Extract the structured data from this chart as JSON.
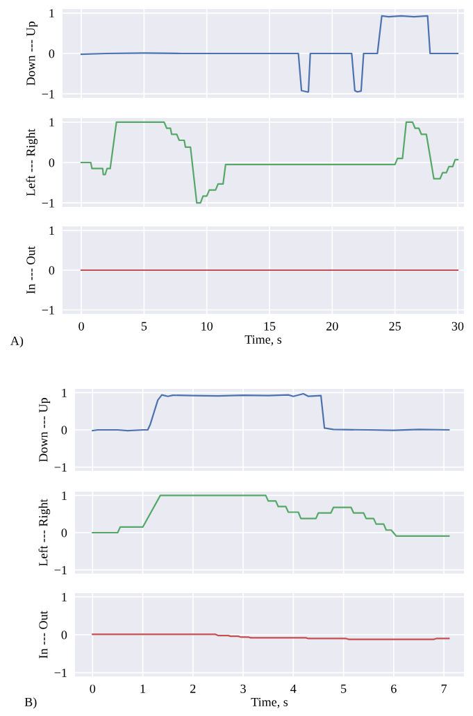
{
  "chart_data": [
    {
      "type": "line",
      "ylabel": "Down --- Up",
      "xlim": [
        -1.5,
        30.5
      ],
      "xticks": [
        0,
        5,
        10,
        15,
        20,
        25,
        30
      ],
      "ylim": [
        -1.1,
        1.1
      ],
      "yticks": [
        -1,
        0,
        1
      ],
      "grid": true,
      "tick_labels": "y",
      "series": [
        {
          "color": "#4c72b0",
          "x": [
            0,
            2,
            5,
            8,
            11,
            14,
            17.3,
            17.55,
            18.0,
            18.1,
            18.25,
            21.55,
            21.8,
            22.0,
            22.3,
            22.5,
            23.6,
            23.95,
            24.5,
            25.5,
            26.5,
            27.6,
            27.8,
            30
          ],
          "values": [
            -0.02,
            0.0,
            0.01,
            0.0,
            0.0,
            0.0,
            0.0,
            -0.92,
            -0.95,
            -0.95,
            0.0,
            0.0,
            -0.92,
            -0.95,
            -0.93,
            0.0,
            0.0,
            0.93,
            0.91,
            0.93,
            0.91,
            0.93,
            0.0,
            0.0
          ]
        }
      ]
    },
    {
      "type": "line",
      "ylabel": "Left --- Right",
      "xlim": [
        -1.5,
        30.5
      ],
      "xticks": [
        0,
        5,
        10,
        15,
        20,
        25,
        30
      ],
      "ylim": [
        -1.1,
        1.1
      ],
      "yticks": [
        -1,
        0,
        1
      ],
      "grid": true,
      "tick_labels": "y",
      "series": [
        {
          "color": "#55a868",
          "x": [
            0,
            0.75,
            0.85,
            1.7,
            1.75,
            1.9,
            2.05,
            2.3,
            2.8,
            6.6,
            6.8,
            7.1,
            7.2,
            7.6,
            7.8,
            8.2,
            8.3,
            8.7,
            9.2,
            9.5,
            9.7,
            10.0,
            10.2,
            10.7,
            10.9,
            11.3,
            11.5,
            25.0,
            25.2,
            25.6,
            25.9,
            26.4,
            26.6,
            26.9,
            27.1,
            27.5,
            28.1,
            28.6,
            28.8,
            29.1,
            29.3,
            29.6,
            29.8,
            30
          ],
          "values": [
            0,
            0,
            -0.15,
            -0.15,
            -0.3,
            -0.3,
            -0.15,
            -0.15,
            1.0,
            1.0,
            0.85,
            0.85,
            0.7,
            0.7,
            0.55,
            0.55,
            0.38,
            0.38,
            -1.0,
            -1.0,
            -0.83,
            -0.83,
            -0.68,
            -0.68,
            -0.53,
            -0.53,
            -0.05,
            -0.05,
            0.1,
            0.1,
            1.0,
            1.0,
            0.85,
            0.85,
            0.7,
            0.7,
            -0.4,
            -0.4,
            -0.25,
            -0.25,
            -0.1,
            -0.1,
            0.07,
            0.07
          ]
        }
      ]
    },
    {
      "type": "line",
      "ylabel": "In --- Out",
      "xlabel": "Time, s",
      "annotations": [
        "A)"
      ],
      "xlim": [
        -1.5,
        30.5
      ],
      "xticks": [
        0,
        5,
        10,
        15,
        20,
        25,
        30
      ],
      "ylim": [
        -1.1,
        1.1
      ],
      "yticks": [
        -1,
        0,
        1
      ],
      "grid": true,
      "series": [
        {
          "color": "#c44e52",
          "x": [
            0,
            30
          ],
          "values": [
            0,
            0
          ]
        }
      ]
    },
    {
      "type": "line",
      "ylabel": "Down --- Up",
      "xlim": [
        -0.35,
        7.4
      ],
      "xticks": [
        0,
        1,
        2,
        3,
        4,
        5,
        6,
        7
      ],
      "ylim": [
        -1.1,
        1.1
      ],
      "yticks": [
        -1,
        0,
        1
      ],
      "grid": true,
      "tick_labels": "y",
      "series": [
        {
          "color": "#4c72b0",
          "x": [
            0,
            0.1,
            0.5,
            0.7,
            1.0,
            1.1,
            1.15,
            1.3,
            1.38,
            1.5,
            1.6,
            2.0,
            2.5,
            3.0,
            3.5,
            3.9,
            4.0,
            4.2,
            4.3,
            4.55,
            4.62,
            4.8,
            5.5,
            6.0,
            6.5,
            7.1
          ],
          "values": [
            -0.02,
            0.0,
            0.0,
            -0.02,
            0.0,
            0.0,
            0.15,
            0.8,
            0.94,
            0.9,
            0.93,
            0.92,
            0.91,
            0.93,
            0.92,
            0.94,
            0.9,
            0.97,
            0.9,
            0.92,
            0.05,
            0.01,
            0.0,
            -0.01,
            0.01,
            0.0
          ]
        }
      ]
    },
    {
      "type": "line",
      "ylabel": "Left --- Right",
      "xlim": [
        -0.35,
        7.4
      ],
      "xticks": [
        0,
        1,
        2,
        3,
        4,
        5,
        6,
        7
      ],
      "ylim": [
        -1.1,
        1.1
      ],
      "yticks": [
        -1,
        0,
        1
      ],
      "grid": true,
      "tick_labels": "y",
      "series": [
        {
          "color": "#55a868",
          "x": [
            0,
            0.5,
            0.55,
            1.0,
            1.35,
            3.45,
            3.5,
            3.65,
            3.7,
            3.85,
            3.9,
            4.1,
            4.15,
            4.45,
            4.5,
            4.75,
            4.8,
            5.15,
            5.2,
            5.4,
            5.45,
            5.6,
            5.65,
            5.8,
            5.85,
            5.95,
            6.05,
            7.1
          ],
          "values": [
            0,
            0,
            0.15,
            0.15,
            1.0,
            1.0,
            0.85,
            0.85,
            0.7,
            0.7,
            0.55,
            0.55,
            0.38,
            0.38,
            0.53,
            0.53,
            0.68,
            0.68,
            0.53,
            0.53,
            0.38,
            0.38,
            0.23,
            0.23,
            0.07,
            0.07,
            -0.09,
            -0.09
          ]
        }
      ]
    },
    {
      "type": "line",
      "ylabel": "In --- Out",
      "xlabel": "Time, s",
      "annotations": [
        "B)"
      ],
      "xlim": [
        -0.35,
        7.4
      ],
      "xticks": [
        0,
        1,
        2,
        3,
        4,
        5,
        6,
        7
      ],
      "ylim": [
        -1.1,
        1.1
      ],
      "yticks": [
        -1,
        0,
        1
      ],
      "grid": true,
      "series": [
        {
          "color": "#c44e52",
          "x": [
            0,
            2.45,
            2.5,
            2.7,
            2.75,
            2.9,
            2.95,
            3.1,
            3.15,
            4.25,
            4.3,
            5.05,
            5.1,
            6.8,
            6.85,
            7.1
          ],
          "values": [
            0.01,
            0.01,
            -0.02,
            -0.02,
            -0.04,
            -0.04,
            -0.06,
            -0.06,
            -0.08,
            -0.08,
            -0.1,
            -0.1,
            -0.12,
            -0.12,
            -0.1,
            -0.1
          ]
        }
      ]
    }
  ]
}
